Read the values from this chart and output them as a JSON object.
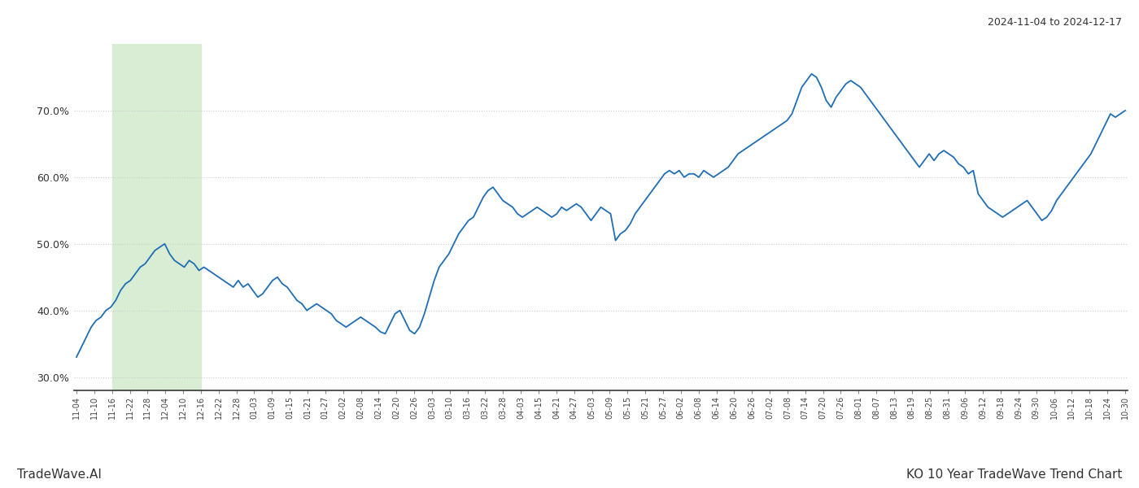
{
  "title_date_range": "2024-11-04 to 2024-12-17",
  "footer_left": "TradeWave.AI",
  "footer_right": "KO 10 Year TradeWave Trend Chart",
  "line_color": "#1f6eb5",
  "line_width": 1.3,
  "bg_color": "#ffffff",
  "grid_color": "#cccccc",
  "highlight_color": "#d8edd4",
  "ylim": [
    28.0,
    80.0
  ],
  "yticks": [
    30.0,
    40.0,
    50.0,
    60.0,
    70.0
  ],
  "x_labels": [
    "11-04",
    "11-10",
    "11-16",
    "11-22",
    "11-28",
    "12-04",
    "12-10",
    "12-16",
    "12-22",
    "12-28",
    "01-03",
    "01-09",
    "01-15",
    "01-21",
    "01-27",
    "02-02",
    "02-08",
    "02-14",
    "02-20",
    "02-26",
    "03-03",
    "03-10",
    "03-16",
    "03-22",
    "03-28",
    "04-03",
    "04-15",
    "04-21",
    "04-27",
    "05-03",
    "05-09",
    "05-15",
    "05-21",
    "05-27",
    "06-02",
    "06-08",
    "06-14",
    "06-20",
    "06-26",
    "07-02",
    "07-08",
    "07-14",
    "07-20",
    "07-26",
    "08-01",
    "08-07",
    "08-13",
    "08-19",
    "08-25",
    "08-31",
    "09-06",
    "09-12",
    "09-18",
    "09-24",
    "09-30",
    "10-06",
    "10-12",
    "10-18",
    "10-24",
    "10-30"
  ],
  "values": [
    33.0,
    34.5,
    36.0,
    37.5,
    38.5,
    39.0,
    40.0,
    40.5,
    41.5,
    43.0,
    44.0,
    44.5,
    45.5,
    46.5,
    47.0,
    48.0,
    49.0,
    49.5,
    50.0,
    48.5,
    47.5,
    47.0,
    46.5,
    47.5,
    47.0,
    46.0,
    46.5,
    46.0,
    45.5,
    45.0,
    44.5,
    44.0,
    43.5,
    44.5,
    43.5,
    44.0,
    43.0,
    42.0,
    42.5,
    43.5,
    44.5,
    45.0,
    44.0,
    43.5,
    42.5,
    41.5,
    41.0,
    40.0,
    40.5,
    41.0,
    40.5,
    40.0,
    39.5,
    38.5,
    38.0,
    37.5,
    38.0,
    38.5,
    39.0,
    38.5,
    38.0,
    37.5,
    36.8,
    36.5,
    38.0,
    39.5,
    40.0,
    38.5,
    37.0,
    36.5,
    37.5,
    39.5,
    42.0,
    44.5,
    46.5,
    47.5,
    48.5,
    50.0,
    51.5,
    52.5,
    53.5,
    54.0,
    55.5,
    57.0,
    58.0,
    58.5,
    57.5,
    56.5,
    56.0,
    55.5,
    54.5,
    54.0,
    54.5,
    55.0,
    55.5,
    55.0,
    54.5,
    54.0,
    54.5,
    55.5,
    55.0,
    55.5,
    56.0,
    55.5,
    54.5,
    53.5,
    54.5,
    55.5,
    55.0,
    54.5,
    50.5,
    51.5,
    52.0,
    53.0,
    54.5,
    55.5,
    56.5,
    57.5,
    58.5,
    59.5,
    60.5,
    61.0,
    60.5,
    61.0,
    60.0,
    60.5,
    60.5,
    60.0,
    61.0,
    60.5,
    60.0,
    60.5,
    61.0,
    61.5,
    62.5,
    63.5,
    64.0,
    64.5,
    65.0,
    65.5,
    66.0,
    66.5,
    67.0,
    67.5,
    68.0,
    68.5,
    69.5,
    71.5,
    73.5,
    74.5,
    75.5,
    75.0,
    73.5,
    71.5,
    70.5,
    72.0,
    73.0,
    74.0,
    74.5,
    74.0,
    73.5,
    72.5,
    71.5,
    70.5,
    69.5,
    68.5,
    67.5,
    66.5,
    65.5,
    64.5,
    63.5,
    62.5,
    61.5,
    62.5,
    63.5,
    62.5,
    63.5,
    64.0,
    63.5,
    63.0,
    62.0,
    61.5,
    60.5,
    61.0,
    57.5,
    56.5,
    55.5,
    55.0,
    54.5,
    54.0,
    54.5,
    55.0,
    55.5,
    56.0,
    56.5,
    55.5,
    54.5,
    53.5,
    54.0,
    55.0,
    56.5,
    57.5,
    58.5,
    59.5,
    60.5,
    61.5,
    62.5,
    63.5,
    65.0,
    66.5,
    68.0,
    69.5,
    69.0,
    69.5,
    70.0
  ],
  "highlight_x_start_label": "11-16",
  "highlight_x_end_label": "12-16"
}
